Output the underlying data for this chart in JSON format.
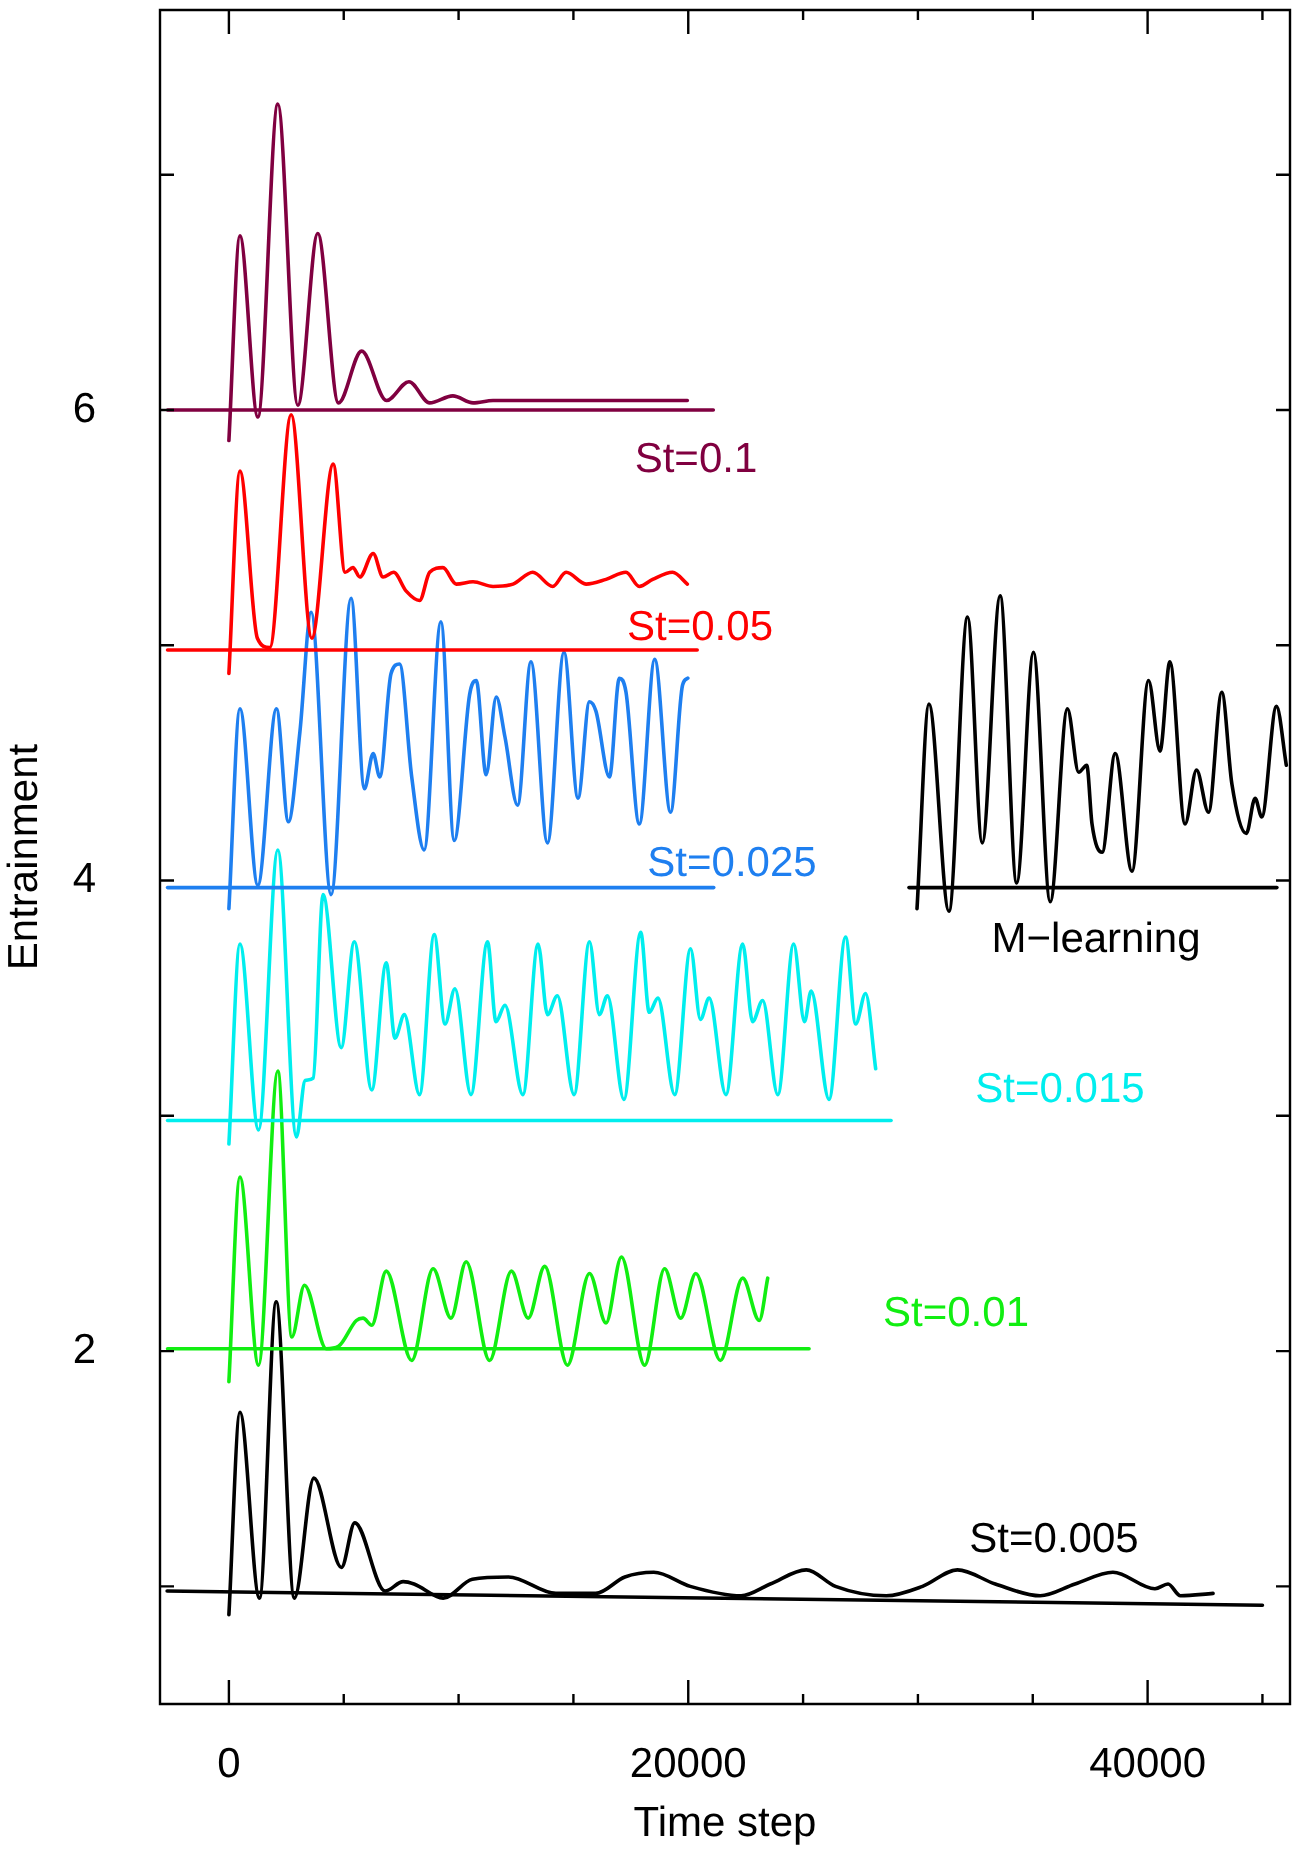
{
  "chart_data": {
    "type": "line",
    "xlabel": "Time step",
    "ylabel": "Entrainment",
    "xlim": [
      -3000,
      46200
    ],
    "ylim": [
      0.5,
      7.7
    ],
    "xticks": [
      0,
      {
        "value": 5000,
        "label": null
      },
      {
        "value": 10000,
        "label": null
      },
      {
        "value": 15000,
        "label": null
      },
      20000,
      {
        "value": 25000,
        "label": null
      },
      {
        "value": 30000,
        "label": null
      },
      {
        "value": 35000,
        "label": null
      },
      40000,
      {
        "value": 45000,
        "label": null
      }
    ],
    "yticks": [
      {
        "value": 1,
        "label": null
      },
      2,
      {
        "value": 3,
        "label": null
      },
      4,
      {
        "value": 5,
        "label": null
      },
      6,
      {
        "value": 7,
        "label": null
      }
    ],
    "series": [
      {
        "name": "St=0.1",
        "color": "#800040",
        "x": [
          0,
          480,
          1260,
          2130,
          3000,
          3870,
          4770,
          5780,
          6860,
          7840,
          8740,
          9750,
          10630,
          11500,
          14390,
          17290,
          19960
        ],
        "values": [
          5.87,
          6.74,
          5.97,
          7.3,
          6.02,
          6.75,
          6.03,
          6.25,
          6.04,
          6.12,
          6.03,
          6.06,
          6.03,
          6.04,
          6.04,
          6.04,
          6.04
        ]
      },
      {
        "color": "#800040",
        "x": [
          -2670,
          21090
        ],
        "values": [
          6,
          6
        ]
      },
      {
        "name": "St=0.05",
        "color": "#ff0000",
        "x": [
          0,
          480,
          1240,
          1780,
          2710,
          3610,
          4540,
          5060,
          5400,
          5700,
          6280,
          6710,
          7170,
          7720,
          8300,
          8740,
          9320,
          9900,
          10630,
          11500,
          12370,
          13230,
          14100,
          14680,
          15550,
          16420,
          17290,
          17870,
          18450,
          19320,
          19960
        ],
        "values": [
          4.88,
          5.74,
          5.03,
          4.99,
          5.98,
          5.03,
          5.77,
          5.31,
          5.33,
          5.29,
          5.39,
          5.29,
          5.31,
          5.23,
          5.19,
          5.31,
          5.33,
          5.26,
          5.27,
          5.25,
          5.26,
          5.31,
          5.25,
          5.31,
          5.26,
          5.28,
          5.31,
          5.25,
          5.28,
          5.31,
          5.26
        ]
      },
      {
        "color": "#ff0000",
        "x": [
          -2670,
          20390
        ],
        "values": [
          4.98,
          4.98
        ]
      },
      {
        "name": "St=0.025",
        "color": "#1e7ff0",
        "x": [
          0,
          480,
          1260,
          2070,
          2590,
          3090,
          3580,
          4450,
          5320,
          5900,
          6280,
          6570,
          7060,
          7430,
          7960,
          8500,
          9230,
          9810,
          10480,
          10770,
          11200,
          11640,
          12020,
          12570,
          13150,
          13870,
          14590,
          15200,
          15700,
          15980,
          16570,
          17000,
          17290,
          17870,
          18540,
          19230,
          19750,
          19980
        ],
        "values": [
          3.88,
          4.73,
          3.98,
          4.73,
          4.25,
          4.63,
          5.14,
          3.94,
          5.2,
          4.39,
          4.54,
          4.44,
          4.88,
          4.92,
          4.44,
          4.13,
          5.1,
          4.17,
          4.79,
          4.85,
          4.45,
          4.78,
          4.61,
          4.32,
          4.93,
          4.16,
          4.97,
          4.35,
          4.76,
          4.72,
          4.44,
          4.86,
          4.8,
          4.24,
          4.94,
          4.29,
          4.83,
          4.86
        ]
      },
      {
        "color": "#1e7ff0",
        "x": [
          -2670,
          21110
        ],
        "values": [
          3.97,
          3.97
        ]
      },
      {
        "name": "St=0.015",
        "color": "#00eeee",
        "x": [
          0,
          480,
          1290,
          2130,
          2940,
          3320,
          3670,
          4100,
          4890,
          5460,
          6220,
          6850,
          7230,
          7640,
          8300,
          8940,
          9410,
          9840,
          10540,
          11260,
          11630,
          12020,
          12800,
          13460,
          13870,
          14300,
          15030,
          15700,
          16130,
          16480,
          17200,
          17930,
          18300,
          18680,
          19410,
          20100,
          20530,
          20910,
          21640,
          22370,
          22800,
          23240,
          23900,
          24590,
          25060,
          25350,
          26130,
          26850,
          27290,
          27720,
          28160
        ],
        "values": [
          2.88,
          3.73,
          2.94,
          4.13,
          2.91,
          3.15,
          3.16,
          3.94,
          3.29,
          3.74,
          3.11,
          3.65,
          3.33,
          3.43,
          3.09,
          3.77,
          3.39,
          3.54,
          3.09,
          3.74,
          3.4,
          3.47,
          3.09,
          3.73,
          3.43,
          3.51,
          3.09,
          3.74,
          3.43,
          3.51,
          3.07,
          3.78,
          3.44,
          3.5,
          3.09,
          3.71,
          3.41,
          3.5,
          3.09,
          3.73,
          3.4,
          3.49,
          3.09,
          3.73,
          3.4,
          3.53,
          3.07,
          3.76,
          3.39,
          3.52,
          3.2
        ]
      },
      {
        "color": "#00eeee",
        "x": [
          -2670,
          28830
        ],
        "values": [
          2.98,
          2.98
        ]
      },
      {
        "name": "St=0.01",
        "color": "#11ee11",
        "x": [
          0,
          480,
          1290,
          2130,
          2740,
          3290,
          4240,
          4770,
          5550,
          5840,
          6220,
          6850,
          7960,
          8890,
          9670,
          10330,
          11350,
          12300,
          13030,
          13750,
          14740,
          15700,
          16420,
          17090,
          18100,
          18970,
          19670,
          20330,
          21400,
          22370,
          23090,
          23460
        ],
        "values": [
          1.87,
          2.74,
          1.94,
          3.19,
          2.06,
          2.28,
          2.01,
          2.02,
          2.13,
          2.14,
          2.11,
          2.34,
          1.96,
          2.35,
          2.14,
          2.38,
          1.96,
          2.34,
          2.14,
          2.36,
          1.94,
          2.33,
          2.12,
          2.4,
          1.94,
          2.35,
          2.14,
          2.33,
          1.96,
          2.31,
          2.13,
          2.31
        ]
      },
      {
        "color": "#11ee11",
        "x": [
          -2670,
          25260
        ],
        "values": [
          2.01,
          2.01
        ]
      },
      {
        "name": "St=0.005",
        "color": "#000000",
        "x": [
          0,
          480,
          1330,
          2060,
          2850,
          3700,
          4900,
          5480,
          6800,
          7590,
          8060,
          9330,
          10600,
          12170,
          14240,
          15970,
          17240,
          18500,
          20090,
          22300,
          23570,
          25140,
          26410,
          28620,
          30200,
          31720,
          33370,
          35320,
          36840,
          38490,
          40320,
          40890,
          41430,
          42850
        ],
        "values": [
          0.88,
          1.74,
          0.95,
          2.21,
          0.95,
          1.46,
          1.08,
          1.27,
          0.98,
          1.02,
          1.01,
          0.95,
          1.03,
          1.04,
          0.97,
          0.97,
          1.04,
          1.06,
          1,
          0.96,
          1.01,
          1.07,
          1,
          0.96,
          1,
          1.07,
          1.01,
          0.96,
          1.01,
          1.06,
          0.99,
          1.01,
          0.96,
          0.97
        ]
      },
      {
        "color": "#000000",
        "x": [
          -2690,
          45000
        ],
        "values": [
          0.98,
          0.92
        ]
      },
      {
        "name": "M−learning",
        "color": "#000000",
        "x": [
          29960,
          30480,
          31350,
          32160,
          32800,
          33580,
          34300,
          35030,
          35760,
          36510,
          37000,
          37350,
          37580,
          38020,
          38590,
          39320,
          40040,
          40540,
          40970,
          41630,
          42130,
          42650,
          43230,
          43670,
          44300,
          44680,
          44970,
          45610,
          46040
        ],
        "values": [
          3.88,
          4.75,
          3.87,
          5.12,
          4.16,
          5.21,
          3.99,
          4.97,
          3.91,
          4.73,
          4.46,
          4.49,
          4.24,
          4.12,
          4.54,
          4.04,
          4.85,
          4.55,
          4.93,
          4.24,
          4.47,
          4.29,
          4.8,
          4.41,
          4.2,
          4.35,
          4.27,
          4.74,
          4.49
        ]
      },
      {
        "color": "#000000",
        "x": [
          29610,
          45630
        ],
        "values": [
          3.97,
          3.97
        ]
      }
    ]
  }
}
